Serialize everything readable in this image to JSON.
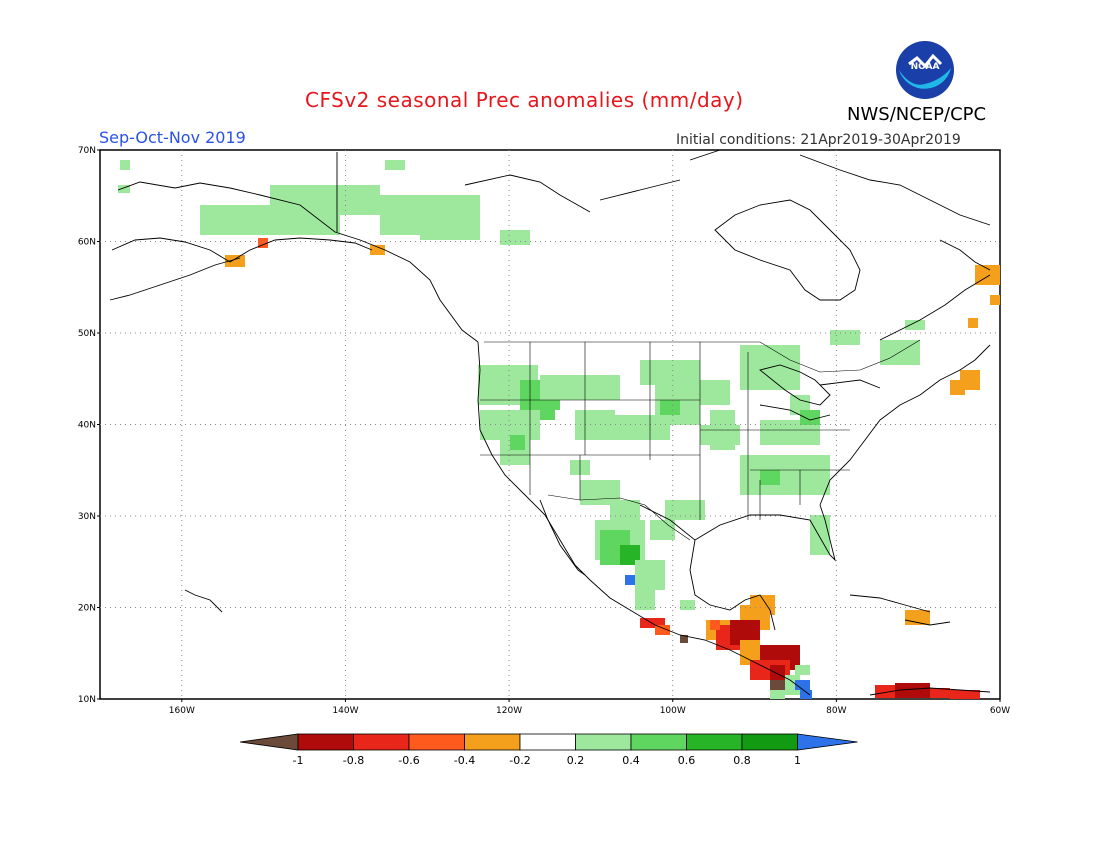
{
  "header": {
    "title": "CFSv2 seasonal Prec anomalies (mm/day)",
    "agency": "NWS/NCEP/CPC",
    "season": "Sep-Oct-Nov 2019",
    "initial_conditions": "Initial conditions: 21Apr2019-30Apr2019",
    "logo_text": "NOAA"
  },
  "map": {
    "lat_labels": [
      "70N",
      "60N",
      "50N",
      "40N",
      "30N",
      "20N",
      "10N"
    ],
    "lon_labels": [
      "160W",
      "140W",
      "120W",
      "100W",
      "80W",
      "60W"
    ],
    "lon_range": [
      -170,
      -60
    ],
    "lat_range": [
      10,
      70
    ]
  },
  "colorbar": {
    "labels": [
      "-1",
      "-0.8",
      "-0.6",
      "-0.4",
      "-0.2",
      "0.2",
      "0.4",
      "0.6",
      "0.8",
      "1"
    ],
    "colors": [
      "#6b4a3a",
      "#b00b0b",
      "#e8261a",
      "#ff5a1e",
      "#f4a01c",
      "#ffffff",
      "#9de89d",
      "#5fd65f",
      "#27b527",
      "#129b12",
      "#2d72e8"
    ]
  }
}
